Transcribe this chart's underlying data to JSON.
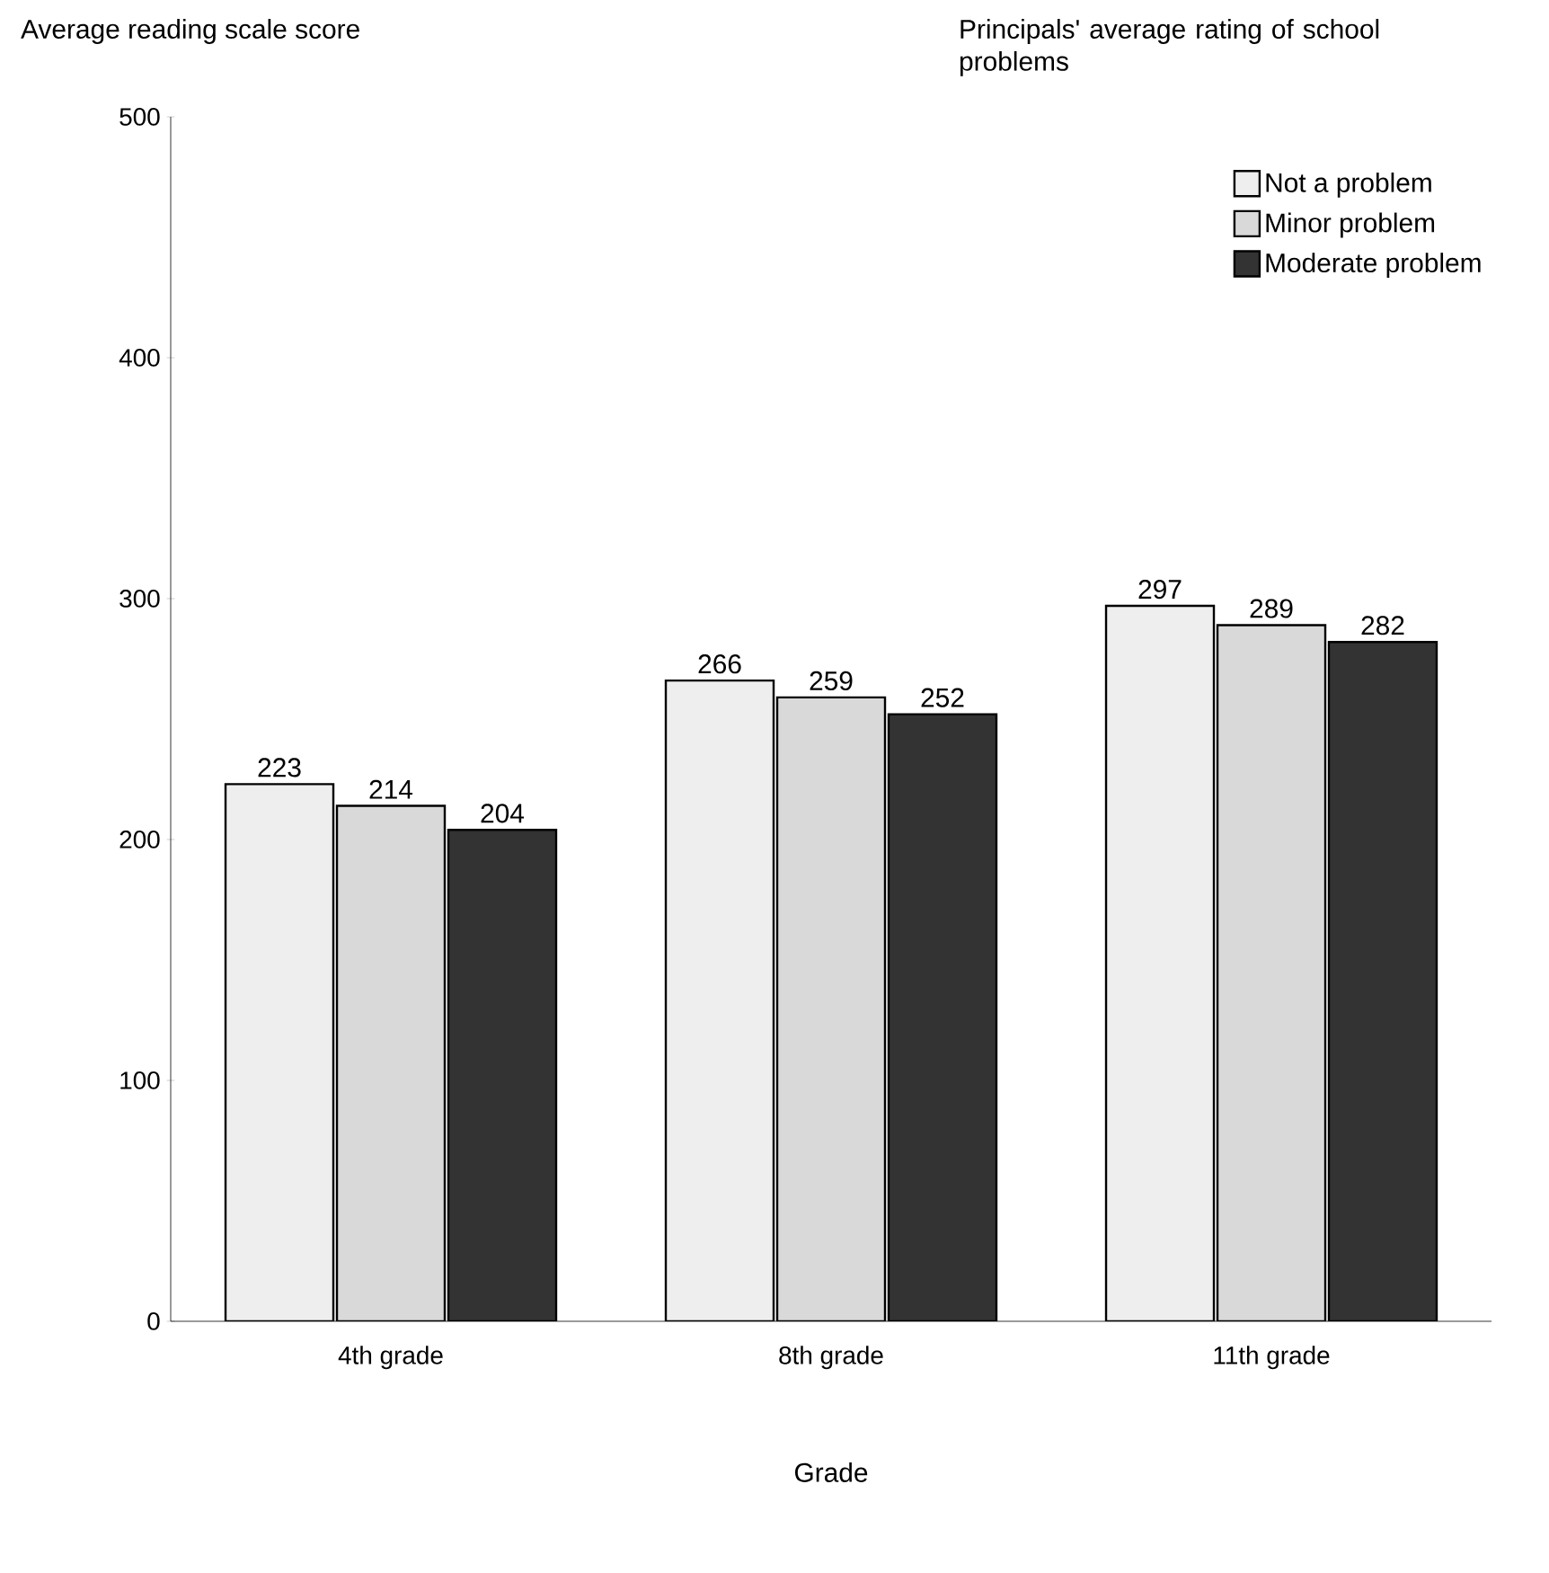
{
  "chart_data": {
    "type": "bar",
    "ylabel": "Average reading scale score",
    "xlabel": "Grade",
    "legend_title": "Principals' average rating of school problems",
    "categories": [
      "4th grade",
      "8th grade",
      "11th grade"
    ],
    "series": [
      {
        "name": "Not a problem",
        "color": "#eeeeee",
        "values": [
          223,
          266,
          297
        ]
      },
      {
        "name": "Minor problem",
        "color": "#d9d9d9",
        "values": [
          214,
          259,
          289
        ]
      },
      {
        "name": "Moderate problem",
        "color": "#333333",
        "values": [
          204,
          252,
          282
        ]
      }
    ],
    "ylim": [
      0,
      500
    ],
    "yticks": [
      0,
      100,
      200,
      300,
      400,
      500
    ],
    "data_labels": true,
    "legend": "top right"
  }
}
